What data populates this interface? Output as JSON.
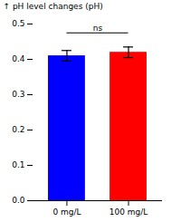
{
  "chart_data": {
    "type": "bar",
    "categories": [
      "0 mg/L",
      "100 mg/L"
    ],
    "values": [
      0.41,
      0.42
    ],
    "errors": [
      0.015,
      0.015
    ],
    "colors": [
      "#0000ff",
      "#ff0000"
    ],
    "ylabel": "pH level changes (pH)",
    "ylim": [
      0.0,
      0.5
    ],
    "yticks": [
      {
        "value": 0,
        "label": "0.0"
      },
      0.1,
      0.2,
      0.3,
      0.4,
      0.5
    ],
    "grid": false,
    "annotations": [
      {
        "text": "ns",
        "y": 0.475,
        "from": "0 mg/L",
        "to": "100 mg/L"
      }
    ]
  }
}
